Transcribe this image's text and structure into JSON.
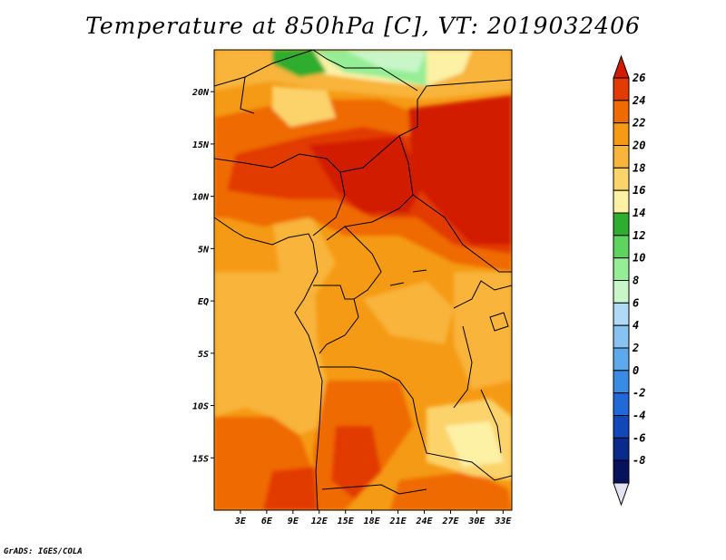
{
  "title": "Temperature at 850hPa [C], VT: 2019032406",
  "credit": "GrADS: IGES/COLA",
  "map": {
    "projection": "latlon",
    "lon_range": [
      0,
      34
    ],
    "lat_range": [
      -20,
      24
    ],
    "lat_ticks": [
      {
        "value": 20,
        "label": "20N"
      },
      {
        "value": 15,
        "label": "15N"
      },
      {
        "value": 10,
        "label": "10N"
      },
      {
        "value": 5,
        "label": "5N"
      },
      {
        "value": 0,
        "label": "EQ"
      },
      {
        "value": -5,
        "label": "5S"
      },
      {
        "value": -10,
        "label": "10S"
      },
      {
        "value": -15,
        "label": "15S"
      }
    ],
    "lon_ticks": [
      {
        "value": 3,
        "label": "3E"
      },
      {
        "value": 6,
        "label": "6E"
      },
      {
        "value": 9,
        "label": "9E"
      },
      {
        "value": 12,
        "label": "12E"
      },
      {
        "value": 15,
        "label": "15E"
      },
      {
        "value": 18,
        "label": "18E"
      },
      {
        "value": 21,
        "label": "21E"
      },
      {
        "value": 24,
        "label": "24E"
      },
      {
        "value": 27,
        "label": "27E"
      },
      {
        "value": 30,
        "label": "30E"
      },
      {
        "value": 33,
        "label": "33E"
      }
    ]
  },
  "colorbar": {
    "levels": [
      "26",
      "24",
      "22",
      "20",
      "18",
      "16",
      "14",
      "12",
      "10",
      "8",
      "6",
      "4",
      "2",
      "0",
      "-2",
      "-4",
      "-6",
      "-8"
    ],
    "colors": [
      "#d21a00",
      "#e23a00",
      "#ef6a00",
      "#f59a14",
      "#f8b43b",
      "#fbd36b",
      "#fdf1a6",
      "#2ead2e",
      "#5fd35f",
      "#95ee95",
      "#c8f6c8",
      "#afd9f5",
      "#87c2f1",
      "#5ea8ec",
      "#3a8be3",
      "#2069d6",
      "#1147b8",
      "#0a2a8c",
      "#06135c",
      "#e3e3f2"
    ]
  }
}
